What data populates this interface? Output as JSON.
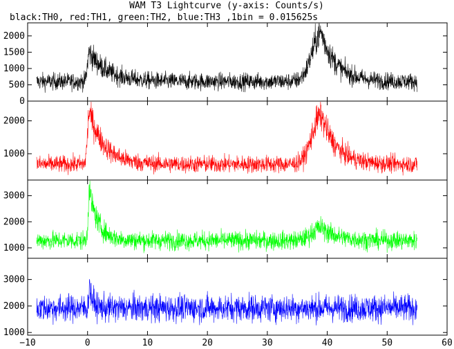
{
  "title": "WAM T3 Lightcurve (y-axis: Counts/s)",
  "subtitle": "black:TH0, red:TH1, green:TH2, blue:TH3 ,1bin = 0.015625s",
  "chart_data": {
    "type": "line",
    "title": "WAM T3 Lightcurve (y-axis: Counts/s)",
    "subtitle": "black:TH0, red:TH1, green:TH2, blue:TH3 ,1bin = 0.015625s",
    "xlabel": "",
    "ylabel": "",
    "xlim": [
      -10,
      60
    ],
    "x_ticks": [
      -10,
      0,
      10,
      20,
      30,
      40,
      50,
      60
    ],
    "x_tick_labels": [
      "−10",
      "0",
      "10",
      "20",
      "30",
      "40",
      "50",
      "60"
    ],
    "data_x_range": [
      -8.5,
      55
    ],
    "bin_size_s": 0.015625,
    "grid": false,
    "panels": [
      {
        "series": "TH0",
        "color": "#000000",
        "ylim": [
          0,
          2400
        ],
        "y_ticks": [
          0,
          500,
          1000,
          1500,
          2000
        ],
        "y_tick_labels": [
          "0",
          "500",
          "1000",
          "1500",
          "2000"
        ],
        "baseline": 600,
        "noise_amplitude": 280,
        "peaks": [
          {
            "t": 0.3,
            "amplitude": 900,
            "rise": 0.3,
            "decay": 3
          },
          {
            "t": 39,
            "amplitude": 1500,
            "rise": 1.5,
            "decay": 2.5
          }
        ]
      },
      {
        "series": "TH1",
        "color": "#ff0000",
        "ylim": [
          200,
          2600
        ],
        "y_ticks": [
          1000,
          2000
        ],
        "y_tick_labels": [
          "1000",
          "2000"
        ],
        "baseline": 680,
        "noise_amplitude": 280,
        "peaks": [
          {
            "t": 0.3,
            "amplitude": 1600,
            "rise": 0.3,
            "decay": 2.5
          },
          {
            "t": 39,
            "amplitude": 1500,
            "rise": 1.5,
            "decay": 2.5
          }
        ]
      },
      {
        "series": "TH2",
        "color": "#00ff00",
        "ylim": [
          600,
          3600
        ],
        "y_ticks": [
          1000,
          2000,
          3000
        ],
        "y_tick_labels": [
          "1000",
          "2000",
          "3000"
        ],
        "baseline": 1280,
        "noise_amplitude": 380,
        "peaks": [
          {
            "t": 0.3,
            "amplitude": 1900,
            "rise": 0.2,
            "decay": 1.5
          },
          {
            "t": 39,
            "amplitude": 500,
            "rise": 1.5,
            "decay": 2.5
          }
        ]
      },
      {
        "series": "TH3",
        "color": "#0000ff",
        "ylim": [
          900,
          3800
        ],
        "y_ticks": [
          1000,
          2000,
          3000
        ],
        "y_tick_labels": [
          "1000",
          "2000",
          "3000"
        ],
        "baseline": 1920,
        "noise_amplitude": 550,
        "peaks": [
          {
            "t": 0.3,
            "amplitude": 900,
            "rise": 0.1,
            "decay": 0.5
          }
        ]
      }
    ]
  }
}
